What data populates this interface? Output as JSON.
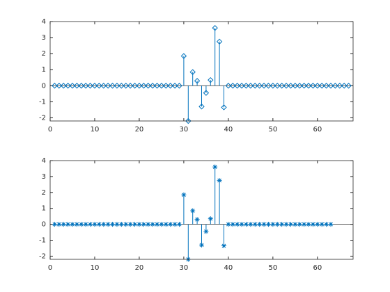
{
  "chart_data": [
    {
      "type": "stem",
      "marker": "diamond",
      "color": "#0072bd",
      "x": [
        1,
        2,
        3,
        4,
        5,
        6,
        7,
        8,
        9,
        10,
        11,
        12,
        13,
        14,
        15,
        16,
        17,
        18,
        19,
        20,
        21,
        22,
        23,
        24,
        25,
        26,
        27,
        28,
        29,
        30,
        31,
        32,
        33,
        34,
        35,
        36,
        37,
        38,
        39,
        40,
        41,
        42,
        43,
        44,
        45,
        46,
        47,
        48,
        49,
        50,
        51,
        52,
        53,
        54,
        55,
        56,
        57,
        58,
        59,
        60,
        61,
        62,
        63,
        64,
        65,
        66,
        67
      ],
      "values": [
        0,
        0,
        0,
        0,
        0,
        0,
        0,
        0,
        0,
        0,
        0,
        0,
        0,
        0,
        0,
        0,
        0,
        0,
        0,
        0,
        0,
        0,
        0,
        0,
        0,
        0,
        0,
        0,
        0,
        1.85,
        -2.2,
        0.85,
        0.3,
        -1.3,
        -0.45,
        0.35,
        3.6,
        2.75,
        -1.35,
        0,
        0,
        0,
        0,
        0,
        0,
        0,
        0,
        0,
        0,
        0,
        0,
        0,
        0,
        0,
        0,
        0,
        0,
        0,
        0,
        0,
        0,
        0,
        0,
        0,
        0,
        0,
        0
      ],
      "xlim": [
        0,
        68
      ],
      "ylim": [
        -2.2,
        4
      ],
      "xticks": [
        0,
        10,
        20,
        30,
        40,
        50,
        60
      ],
      "yticks": [
        -2,
        -1,
        0,
        1,
        2,
        3,
        4
      ],
      "box": true
    },
    {
      "type": "stem",
      "marker": "asterisk",
      "color": "#0072bd",
      "x": [
        1,
        2,
        3,
        4,
        5,
        6,
        7,
        8,
        9,
        10,
        11,
        12,
        13,
        14,
        15,
        16,
        17,
        18,
        19,
        20,
        21,
        22,
        23,
        24,
        25,
        26,
        27,
        28,
        29,
        30,
        31,
        32,
        33,
        34,
        35,
        36,
        37,
        38,
        39,
        40,
        41,
        42,
        43,
        44,
        45,
        46,
        47,
        48,
        49,
        50,
        51,
        52,
        53,
        54,
        55,
        56,
        57,
        58,
        59,
        60,
        61,
        62,
        63
      ],
      "values": [
        0,
        0,
        0,
        0,
        0,
        0,
        0,
        0,
        0,
        0,
        0,
        0,
        0,
        0,
        0,
        0,
        0,
        0,
        0,
        0,
        0,
        0,
        0,
        0,
        0,
        0,
        0,
        0,
        0,
        1.85,
        -2.2,
        0.85,
        0.3,
        -1.3,
        -0.45,
        0.35,
        3.6,
        2.75,
        -1.35,
        0,
        0,
        0,
        0,
        0,
        0,
        0,
        0,
        0,
        0,
        0,
        0,
        0,
        0,
        0,
        0,
        0,
        0,
        0,
        0,
        0,
        0,
        0,
        0
      ],
      "xlim": [
        0,
        68
      ],
      "ylim": [
        -2.2,
        4
      ],
      "xticks": [
        0,
        10,
        20,
        30,
        40,
        50,
        60
      ],
      "yticks": [
        -2,
        -1,
        0,
        1,
        2,
        3,
        4
      ],
      "box": true
    }
  ]
}
